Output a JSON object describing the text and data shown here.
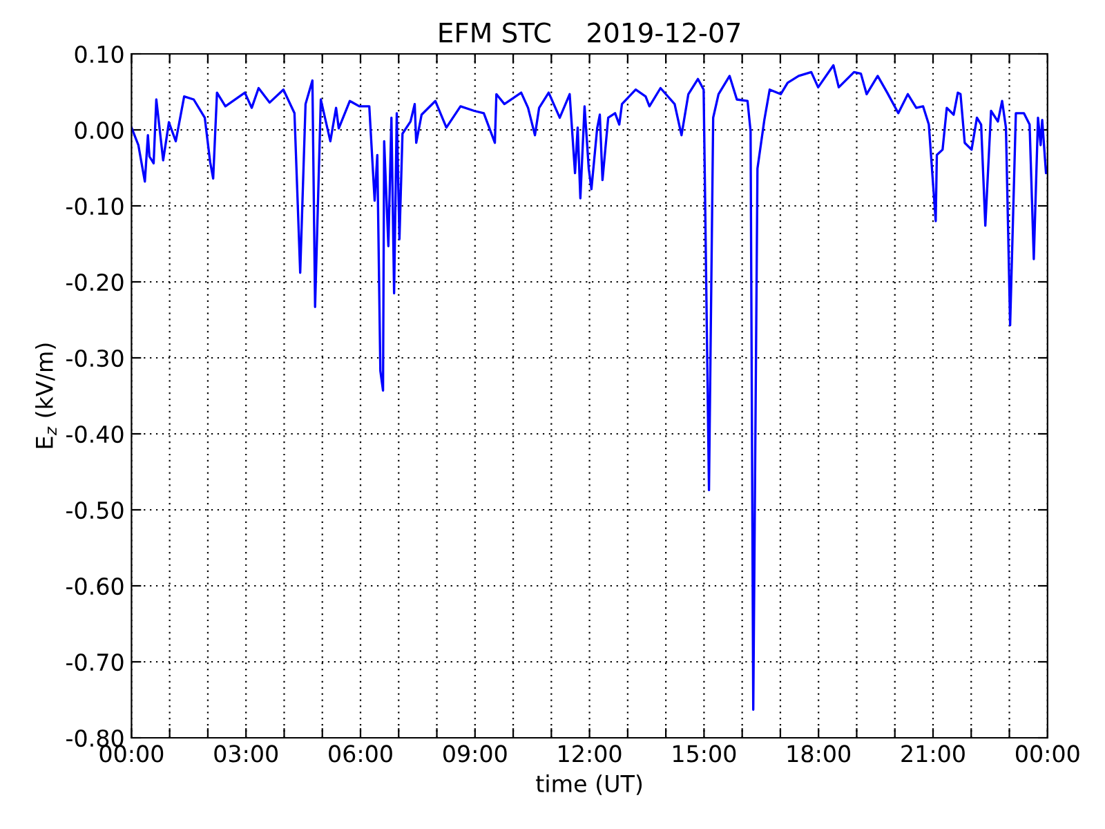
{
  "chart_data": {
    "type": "line",
    "title": "EFM STC    2019-12-07",
    "xlabel": "time (UT)",
    "ylabel": "E$_{z}$ (kV/m)",
    "xlim": [
      0,
      24
    ],
    "xticks": [
      {
        "value": 0,
        "label": "00:00"
      },
      {
        "value": 1,
        "label": null
      },
      {
        "value": 2,
        "label": null
      },
      {
        "value": 3,
        "label": "03:00"
      },
      {
        "value": 4,
        "label": null
      },
      {
        "value": 5,
        "label": null
      },
      {
        "value": 6,
        "label": "06:00"
      },
      {
        "value": 7,
        "label": null
      },
      {
        "value": 8,
        "label": null
      },
      {
        "value": 9,
        "label": "09:00"
      },
      {
        "value": 10,
        "label": null
      },
      {
        "value": 11,
        "label": null
      },
      {
        "value": 12,
        "label": "12:00"
      },
      {
        "value": 13,
        "label": null
      },
      {
        "value": 14,
        "label": null
      },
      {
        "value": 15,
        "label": "15:00"
      },
      {
        "value": 16,
        "label": null
      },
      {
        "value": 17,
        "label": null
      },
      {
        "value": 18,
        "label": "18:00"
      },
      {
        "value": 19,
        "label": null
      },
      {
        "value": 20,
        "label": null
      },
      {
        "value": 21,
        "label": "21:00"
      },
      {
        "value": 22,
        "label": null
      },
      {
        "value": 23,
        "label": null
      },
      {
        "value": 24,
        "label": "00:00"
      }
    ],
    "ylim": [
      -0.8,
      0.1
    ],
    "yticks": [
      {
        "value": 0.1,
        "label": "0.10"
      },
      {
        "value": 0,
        "label": "0.00"
      },
      {
        "value": -0.1,
        "label": "-0.10"
      },
      {
        "value": -0.2,
        "label": "-0.20"
      },
      {
        "value": -0.3,
        "label": "-0.30"
      },
      {
        "value": -0.4,
        "label": "-0.40"
      },
      {
        "value": -0.5,
        "label": "-0.50"
      },
      {
        "value": -0.6,
        "label": "-0.60"
      },
      {
        "value": -0.7,
        "label": "-0.70"
      },
      {
        "value": -0.8,
        "label": "-0.80"
      }
    ],
    "grid": true,
    "marker": "none",
    "line_style": "solid",
    "series": [
      {
        "color": "#0000ff",
        "x": [
          0,
          0.18,
          0.35,
          0.43,
          0.47,
          0.58,
          0.65,
          0.83,
          0.98,
          1.16,
          1.38,
          1.63,
          1.92,
          2.06,
          2.14,
          2.24,
          2.46,
          2.97,
          3.15,
          3.33,
          3.62,
          3.98,
          4.27,
          4.42,
          4.56,
          4.74,
          4.81,
          4.96,
          5.21,
          5.36,
          5.43,
          5.72,
          5.97,
          6.23,
          6.37,
          6.44,
          6.52,
          6.59,
          6.62,
          6.73,
          6.81,
          6.88,
          6.95,
          7.02,
          7.1,
          7.31,
          7.42,
          7.46,
          7.6,
          7.96,
          8.25,
          8.62,
          8.98,
          9.23,
          9.52,
          9.56,
          9.77,
          10.21,
          10.39,
          10.57,
          10.68,
          10.93,
          11.22,
          11.48,
          11.62,
          11.69,
          11.76,
          11.87,
          11.98,
          12.05,
          12.2,
          12.27,
          12.34,
          12.49,
          12.67,
          12.78,
          12.85,
          13.21,
          13.47,
          13.57,
          13.86,
          14.23,
          14.41,
          14.59,
          14.84,
          14.99,
          15.13,
          15.24,
          15.38,
          15.67,
          15.86,
          16.14,
          16.22,
          16.29,
          16.4,
          16.58,
          16.72,
          17.01,
          17.19,
          17.48,
          17.81,
          17.99,
          18.39,
          18.53,
          18.93,
          19.11,
          19.26,
          19.55,
          19.8,
          20.09,
          20.34,
          20.56,
          20.74,
          20.89,
          21.07,
          21.1,
          21.25,
          21.36,
          21.54,
          21.65,
          21.72,
          21.83,
          22.01,
          22.15,
          22.26,
          22.37,
          22.52,
          22.7,
          22.81,
          22.91,
          23.02,
          23.17,
          23.38,
          23.53,
          23.64,
          23.75,
          23.82,
          23.86,
          23.96,
          24.0
        ],
        "values": [
          0.003,
          -0.02,
          -0.068,
          -0.007,
          -0.035,
          -0.044,
          0.04,
          -0.04,
          0.01,
          -0.015,
          0.044,
          0.04,
          0.016,
          -0.042,
          -0.064,
          0.049,
          0.031,
          0.049,
          0.029,
          0.055,
          0.036,
          0.053,
          0.022,
          -0.188,
          0.034,
          0.065,
          -0.233,
          0.04,
          -0.015,
          0.029,
          0.002,
          0.038,
          0.031,
          0.031,
          -0.093,
          -0.033,
          -0.317,
          -0.343,
          -0.015,
          -0.153,
          0.016,
          -0.215,
          0.022,
          -0.144,
          -0.005,
          0.011,
          0.034,
          -0.017,
          0.02,
          0.038,
          0.003,
          0.031,
          0.025,
          0.022,
          -0.017,
          0.047,
          0.034,
          0.049,
          0.029,
          -0.007,
          0.029,
          0.049,
          0.016,
          0.047,
          -0.057,
          0.003,
          -0.09,
          0.031,
          -0.051,
          -0.078,
          0.002,
          0.02,
          -0.066,
          0.016,
          0.022,
          0.007,
          0.034,
          0.053,
          0.044,
          0.031,
          0.055,
          0.034,
          -0.007,
          0.047,
          0.067,
          0.053,
          -0.474,
          0.016,
          0.047,
          0.071,
          0.04,
          0.038,
          -0.002,
          -0.763,
          -0.051,
          0.013,
          0.053,
          0.047,
          0.062,
          0.071,
          0.076,
          0.056,
          0.085,
          0.056,
          0.076,
          0.074,
          0.047,
          0.071,
          0.049,
          0.022,
          0.047,
          0.029,
          0.031,
          0.007,
          -0.12,
          -0.033,
          -0.026,
          0.029,
          0.02,
          0.049,
          0.047,
          -0.017,
          -0.026,
          0.016,
          0.007,
          -0.126,
          0.025,
          0.011,
          0.038,
          0.003,
          -0.257,
          0.022,
          0.022,
          0.007,
          -0.17,
          0.016,
          -0.02,
          0.013,
          -0.057,
          -0.05
        ]
      }
    ]
  }
}
